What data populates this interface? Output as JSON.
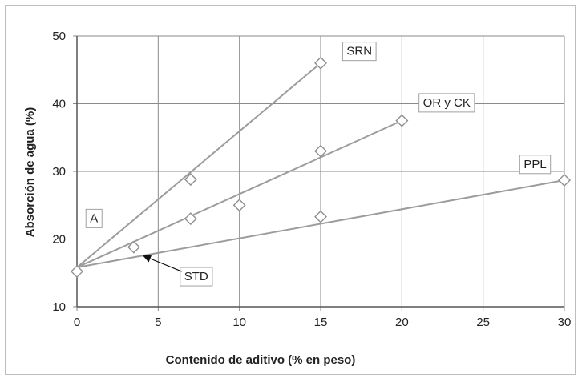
{
  "chart_data": {
    "type": "scatter",
    "xlabel": "Contenido de aditivo (% en peso)",
    "ylabel": "Absorción de agua (%)",
    "xlim": [
      0,
      30
    ],
    "ylim": [
      10,
      50
    ],
    "x_ticks": [
      0,
      5,
      10,
      15,
      20,
      25,
      30
    ],
    "y_ticks": [
      10,
      20,
      30,
      40,
      50
    ],
    "grid": true,
    "points": [
      {
        "x": 0,
        "y": 15.2
      },
      {
        "x": 3.5,
        "y": 18.8
      },
      {
        "x": 7,
        "y": 28.8
      },
      {
        "x": 7,
        "y": 23.0
      },
      {
        "x": 10,
        "y": 25.0
      },
      {
        "x": 15,
        "y": 46.0
      },
      {
        "x": 15,
        "y": 33.0
      },
      {
        "x": 15,
        "y": 23.3
      },
      {
        "x": 20,
        "y": 37.5
      },
      {
        "x": 30,
        "y": 28.7
      }
    ],
    "trend_lines": [
      {
        "name": "SRN",
        "from": [
          0,
          15.8
        ],
        "to": [
          15,
          46.0
        ]
      },
      {
        "name": "OR y CK",
        "from": [
          0,
          15.8
        ],
        "to": [
          20,
          37.5
        ]
      },
      {
        "name": "PPL",
        "from": [
          0,
          15.8
        ],
        "to": [
          30,
          28.7
        ]
      }
    ],
    "annotations": [
      {
        "text": "SRN",
        "x": 16.6,
        "y": 47.2
      },
      {
        "text": "OR y CK",
        "x": 21.3,
        "y": 39.6
      },
      {
        "text": "PPL",
        "x": 27.5,
        "y": 30.5
      },
      {
        "text": "A",
        "x": 0.8,
        "y": 22.5
      },
      {
        "text": "STD",
        "x": 6.6,
        "y": 13.9,
        "arrow_to": [
          4.1,
          17.5
        ]
      }
    ]
  }
}
